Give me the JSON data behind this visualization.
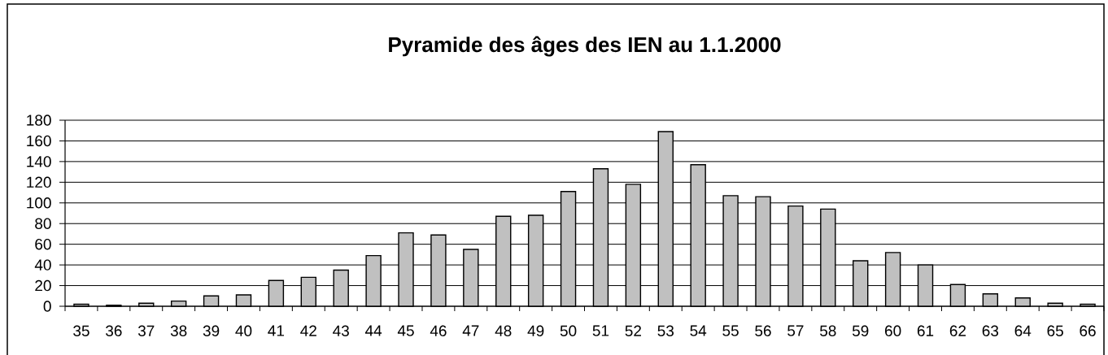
{
  "chart_data": {
    "type": "bar",
    "title": "Pyramide des âges des IEN au 1.1.2000",
    "categories": [
      "35",
      "36",
      "37",
      "38",
      "39",
      "40",
      "41",
      "42",
      "43",
      "44",
      "45",
      "46",
      "47",
      "48",
      "49",
      "50",
      "51",
      "52",
      "53",
      "54",
      "55",
      "56",
      "57",
      "58",
      "59",
      "60",
      "61",
      "62",
      "63",
      "64",
      "65",
      "66"
    ],
    "values": [
      2,
      1,
      3,
      5,
      10,
      11,
      25,
      28,
      35,
      49,
      71,
      69,
      55,
      87,
      88,
      111,
      133,
      118,
      169,
      137,
      107,
      106,
      97,
      94,
      44,
      52,
      40,
      21,
      12,
      8,
      3,
      2
    ],
    "color": "#c0c0c0",
    "ylim": [
      0,
      180
    ],
    "yticks": [
      0,
      20,
      40,
      60,
      80,
      100,
      120,
      140,
      160,
      180
    ],
    "grid": "y"
  }
}
